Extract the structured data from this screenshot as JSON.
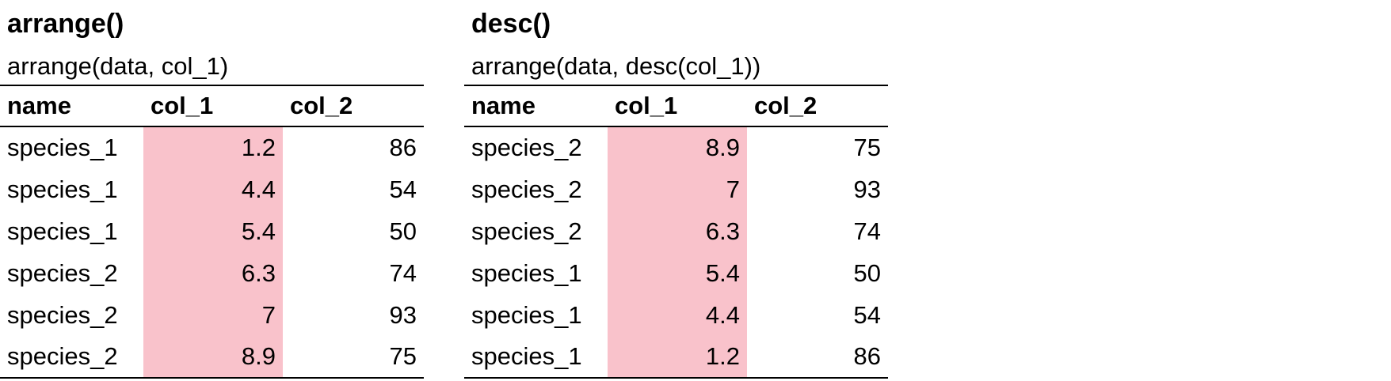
{
  "colors": {
    "highlight": "#f9c2cb",
    "rule": "#000000"
  },
  "panels": [
    {
      "title": "arrange()",
      "subtitle": "arrange(data, col_1)",
      "headers": [
        "name",
        "col_1",
        "col_2"
      ],
      "highlighted_column": "col_1",
      "rows": [
        [
          "species_1",
          "1.2",
          "86"
        ],
        [
          "species_1",
          "4.4",
          "54"
        ],
        [
          "species_1",
          "5.4",
          "50"
        ],
        [
          "species_2",
          "6.3",
          "74"
        ],
        [
          "species_2",
          "7",
          "93"
        ],
        [
          "species_2",
          "8.9",
          "75"
        ]
      ]
    },
    {
      "title": "desc()",
      "subtitle": "arrange(data, desc(col_1))",
      "headers": [
        "name",
        "col_1",
        "col_2"
      ],
      "highlighted_column": "col_1",
      "rows": [
        [
          "species_2",
          "8.9",
          "75"
        ],
        [
          "species_2",
          "7",
          "93"
        ],
        [
          "species_2",
          "6.3",
          "74"
        ],
        [
          "species_1",
          "5.4",
          "50"
        ],
        [
          "species_1",
          "4.4",
          "54"
        ],
        [
          "species_1",
          "1.2",
          "86"
        ]
      ]
    }
  ]
}
